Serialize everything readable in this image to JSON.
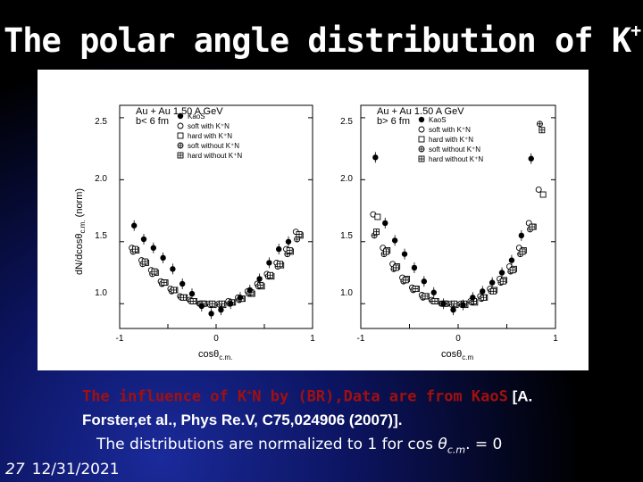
{
  "title": {
    "text": "The polar angle distribution of K",
    "sup": "+"
  },
  "figure": {
    "panels": [
      {
        "heading": "Au + Au 1.50 A GeV",
        "cut": "b< 6 fm",
        "ylabel": "dN/dcosθ",
        "ylabel_sub": "c.m.",
        "ylabel_suffix": " (norm)",
        "xlabel": "cosθ",
        "xlabel_sub": "c.m.",
        "yticks": [
          "2.5",
          "2.0",
          "1.5",
          "1.0"
        ],
        "xticks": [
          "-1",
          "0",
          "1"
        ],
        "legend": [
          "KaoS",
          "soft with K⁺N",
          "hard with K⁺N",
          "soft without K⁺N",
          "hard without K⁺N"
        ]
      },
      {
        "heading": "Au + Au 1.50 A GeV",
        "cut": "b> 6 fm",
        "xlabel": "cosθ",
        "xlabel_sub": "c.m",
        "yticks": [
          "2.5",
          "2.0",
          "1.5",
          "1.0"
        ],
        "xticks": [
          "-1",
          "0",
          "1"
        ],
        "legend": [
          "KaoS",
          "soft with K⁺N",
          "hard with K⁺N",
          "soft without K⁺N",
          "hard without K⁺N"
        ]
      }
    ]
  },
  "chart_data": [
    {
      "type": "scatter",
      "title": "Au + Au 1.50 A GeV",
      "subtitle": "b< 6 fm",
      "xlabel": "cosθ_c.m.",
      "ylabel": "dN/dcosθ_c.m. (norm)",
      "xlim": [
        -1,
        1
      ],
      "ylim": [
        0.8,
        2.6
      ],
      "series": [
        {
          "name": "KaoS",
          "marker": "filled-circle",
          "x": [
            -0.85,
            -0.75,
            -0.65,
            -0.55,
            -0.45,
            -0.35,
            -0.25,
            -0.15,
            -0.05,
            0.05,
            0.15,
            0.25,
            0.35,
            0.45,
            0.55,
            0.65,
            0.75
          ],
          "y": [
            1.63,
            1.52,
            1.45,
            1.37,
            1.28,
            1.16,
            1.08,
            0.98,
            0.92,
            0.95,
            1.0,
            1.05,
            1.11,
            1.2,
            1.33,
            1.44,
            1.5
          ]
        },
        {
          "name": "soft with K⁺N",
          "marker": "open-circle",
          "x": [
            -0.85,
            -0.75,
            -0.65,
            -0.55,
            -0.45,
            -0.35,
            -0.25,
            -0.15,
            -0.05,
            0.05,
            0.15,
            0.25,
            0.35,
            0.45,
            0.55,
            0.65,
            0.75,
            0.85
          ],
          "y": [
            1.45,
            1.35,
            1.27,
            1.18,
            1.12,
            1.06,
            1.03,
            1.0,
            1.0,
            1.0,
            1.02,
            1.05,
            1.1,
            1.16,
            1.24,
            1.33,
            1.44,
            1.58
          ]
        },
        {
          "name": "hard with K⁺N",
          "marker": "open-square",
          "x": [
            -0.85,
            -0.75,
            -0.65,
            -0.55,
            -0.45,
            -0.35,
            -0.25,
            -0.15,
            -0.05,
            0.05,
            0.15,
            0.25,
            0.35,
            0.45,
            0.55,
            0.65,
            0.75,
            0.85
          ],
          "y": [
            1.43,
            1.33,
            1.25,
            1.17,
            1.11,
            1.05,
            1.02,
            1.0,
            0.99,
            0.99,
            1.01,
            1.04,
            1.08,
            1.14,
            1.22,
            1.31,
            1.42,
            1.55
          ]
        },
        {
          "name": "soft without K⁺N",
          "marker": "circle-plus",
          "x": [
            -0.85,
            -0.75,
            -0.65,
            -0.55,
            -0.45,
            -0.35,
            -0.25,
            -0.15,
            -0.05,
            0.05,
            0.15,
            0.25,
            0.35,
            0.45,
            0.55,
            0.65,
            0.75,
            0.85
          ],
          "y": [
            1.42,
            1.32,
            1.24,
            1.16,
            1.1,
            1.05,
            1.02,
            1.0,
            0.99,
            0.99,
            1.0,
            1.03,
            1.08,
            1.14,
            1.22,
            1.3,
            1.4,
            1.52
          ]
        },
        {
          "name": "hard without K⁺N",
          "marker": "square-plus",
          "x": [
            -0.85,
            -0.75,
            -0.65,
            -0.55,
            -0.45,
            -0.35,
            -0.25,
            -0.15,
            -0.05,
            0.05,
            0.15,
            0.25,
            0.35,
            0.45,
            0.55,
            0.65,
            0.75,
            0.85
          ],
          "y": [
            1.44,
            1.34,
            1.26,
            1.17,
            1.11,
            1.05,
            1.02,
            1.0,
            1.0,
            1.0,
            1.01,
            1.04,
            1.09,
            1.15,
            1.23,
            1.32,
            1.43,
            1.56
          ]
        }
      ]
    },
    {
      "type": "scatter",
      "title": "Au + Au 1.50 A GeV",
      "subtitle": "b> 6 fm",
      "xlabel": "cosθ_c.m",
      "xlim": [
        -1,
        1
      ],
      "ylim": [
        0.8,
        2.6
      ],
      "series": [
        {
          "name": "KaoS",
          "marker": "filled-circle",
          "x": [
            -0.85,
            -0.75,
            -0.65,
            -0.55,
            -0.45,
            -0.35,
            -0.25,
            -0.15,
            -0.05,
            0.05,
            0.15,
            0.25,
            0.35,
            0.45,
            0.55,
            0.65,
            0.75
          ],
          "y": [
            2.18,
            1.65,
            1.51,
            1.4,
            1.29,
            1.18,
            1.09,
            1.0,
            0.95,
            0.99,
            1.05,
            1.1,
            1.17,
            1.25,
            1.35,
            1.55,
            2.17
          ]
        },
        {
          "name": "soft with K⁺N",
          "marker": "open-circle",
          "x": [
            -0.85,
            -0.75,
            -0.65,
            -0.55,
            -0.45,
            -0.35,
            -0.25,
            -0.15,
            -0.05,
            0.05,
            0.15,
            0.25,
            0.35,
            0.45,
            0.55,
            0.65,
            0.75,
            0.85
          ],
          "y": [
            1.72,
            1.45,
            1.32,
            1.21,
            1.13,
            1.07,
            1.03,
            1.0,
            1.0,
            1.0,
            1.02,
            1.06,
            1.12,
            1.2,
            1.3,
            1.45,
            1.65,
            1.92
          ]
        },
        {
          "name": "hard with K⁺N",
          "marker": "open-square",
          "x": [
            -0.85,
            -0.75,
            -0.65,
            -0.55,
            -0.45,
            -0.35,
            -0.25,
            -0.15,
            -0.05,
            0.05,
            0.15,
            0.25,
            0.35,
            0.45,
            0.55,
            0.65,
            0.75,
            0.85
          ],
          "y": [
            1.7,
            1.43,
            1.3,
            1.2,
            1.12,
            1.06,
            1.02,
            1.0,
            0.99,
            0.99,
            1.01,
            1.05,
            1.11,
            1.19,
            1.28,
            1.43,
            1.62,
            1.88
          ]
        },
        {
          "name": "soft without K⁺N",
          "marker": "circle-plus",
          "x": [
            -0.85,
            -0.75,
            -0.65,
            -0.55,
            -0.45,
            -0.35,
            -0.25,
            -0.15,
            -0.05,
            0.05,
            0.15,
            0.25,
            0.35,
            0.45,
            0.55,
            0.65,
            0.75,
            0.85
          ],
          "y": [
            1.55,
            1.4,
            1.28,
            1.18,
            1.11,
            1.05,
            1.02,
            1.0,
            0.99,
            0.99,
            1.01,
            1.04,
            1.1,
            1.17,
            1.26,
            1.4,
            1.6,
            2.45
          ]
        },
        {
          "name": "hard without K⁺N",
          "marker": "square-plus",
          "x": [
            -0.85,
            -0.75,
            -0.65,
            -0.55,
            -0.45,
            -0.35,
            -0.25,
            -0.15,
            -0.05,
            0.05,
            0.15,
            0.25,
            0.35,
            0.45,
            0.55,
            0.65,
            0.75,
            0.85
          ],
          "y": [
            1.58,
            1.42,
            1.29,
            1.19,
            1.12,
            1.06,
            1.02,
            1.0,
            1.0,
            1.0,
            1.02,
            1.05,
            1.1,
            1.18,
            1.27,
            1.42,
            1.62,
            2.4
          ]
        }
      ]
    }
  ],
  "caption": {
    "line1": "The influence of K",
    "line1_sup": "+",
    "line1_rest": "N by (BR),Data are from Kao",
    "line1_bold": "S",
    "line1_ref": " [A.",
    "line2": "Forster,et al., Phys Re.V, C75,024906 (2007)].",
    "line3_pre": "The distributions are normalized to 1 for cos ",
    "line3_sym": "θ",
    "line3_sub": "c.m",
    "line3_post": ". = 0"
  },
  "footer": {
    "slide_number": "27",
    "date": "12/31/2021"
  }
}
